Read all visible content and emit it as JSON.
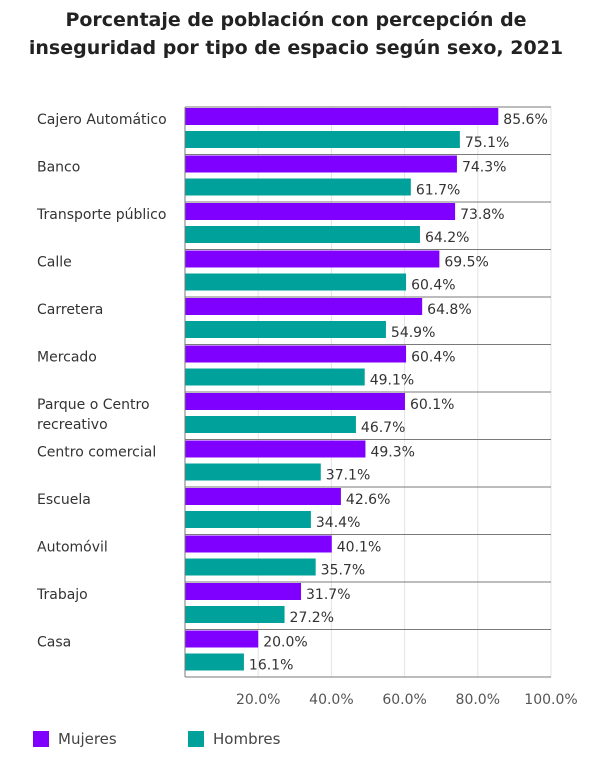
{
  "chart_data": {
    "type": "bar",
    "orientation": "horizontal",
    "title": [
      "Porcentaje de población con percepción de",
      "inseguridad por tipo de espacio según sexo, 2021"
    ],
    "categories": [
      [
        "Cajero Automático"
      ],
      [
        "Banco"
      ],
      [
        "Transporte público"
      ],
      [
        "Calle"
      ],
      [
        "Carretera"
      ],
      [
        "Mercado"
      ],
      [
        "Parque o Centro",
        "recreativo"
      ],
      [
        "Centro comercial"
      ],
      [
        "Escuela"
      ],
      [
        "Automóvil"
      ],
      [
        "Trabajo"
      ],
      [
        "Casa"
      ]
    ],
    "series": [
      {
        "name": "Mujeres",
        "color": "#8000ff",
        "values": [
          85.6,
          74.3,
          73.8,
          69.5,
          64.8,
          60.4,
          60.1,
          49.3,
          42.6,
          40.1,
          31.7,
          20.0
        ],
        "labels": [
          "85.6%",
          "74.3%",
          "73.8%",
          "69.5%",
          "64.8%",
          "60.4%",
          "60.1%",
          "49.3%",
          "42.6%",
          "40.1%",
          "31.7%",
          "20.0%"
        ]
      },
      {
        "name": "Hombres",
        "color": "#00a19a",
        "values": [
          75.1,
          61.7,
          64.2,
          60.4,
          54.9,
          49.1,
          46.7,
          37.1,
          34.4,
          35.7,
          27.2,
          16.1
        ],
        "labels": [
          "75.1%",
          "61.7%",
          "64.2%",
          "60.4%",
          "54.9%",
          "49.1%",
          "46.7%",
          "37.1%",
          "34.4%",
          "35.7%",
          "27.2%",
          "16.1%"
        ]
      }
    ],
    "xlim": [
      0,
      100
    ],
    "xticks": [
      20,
      40,
      60,
      80,
      100
    ],
    "xtick_labels": [
      "20.0%",
      "40.0%",
      "60.0%",
      "80.0%",
      "100.0%"
    ],
    "grid": "vertical",
    "legend": "bottom-left"
  }
}
